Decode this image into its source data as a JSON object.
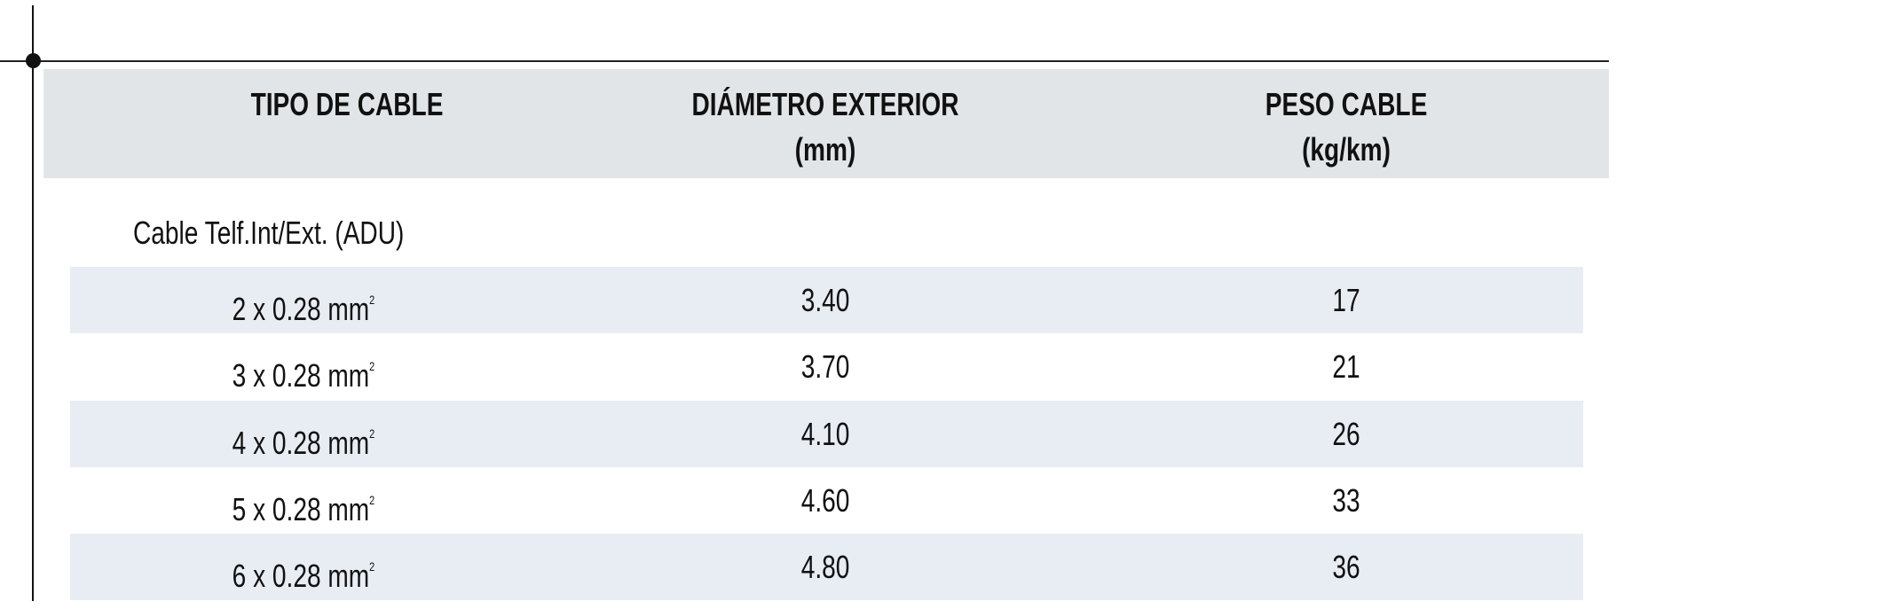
{
  "table": {
    "headers": [
      {
        "line1": "TIPO DE CABLE",
        "line2": ""
      },
      {
        "line1": "DIÁMETRO EXTERIOR",
        "line2": "(mm)"
      },
      {
        "line1": "PESO CABLE",
        "line2": "(kg/km)"
      }
    ],
    "section_label": "Cable Telf.Int/Ext. (ADU)",
    "unit_sup": "2",
    "rows": [
      {
        "type": "2 x 0.28 mm",
        "diameter": "3.40",
        "weight": "17"
      },
      {
        "type": "3 x 0.28 mm",
        "diameter": "3.70",
        "weight": "21"
      },
      {
        "type": "4 x 0.28 mm",
        "diameter": "4.10",
        "weight": "26"
      },
      {
        "type": "5 x 0.28 mm",
        "diameter": "4.60",
        "weight": "33"
      },
      {
        "type": "6 x 0.28 mm",
        "diameter": "4.80",
        "weight": "36"
      }
    ]
  },
  "colors": {
    "header_bg": "#e2e5e8",
    "row_shade": "#e8ecf3"
  }
}
